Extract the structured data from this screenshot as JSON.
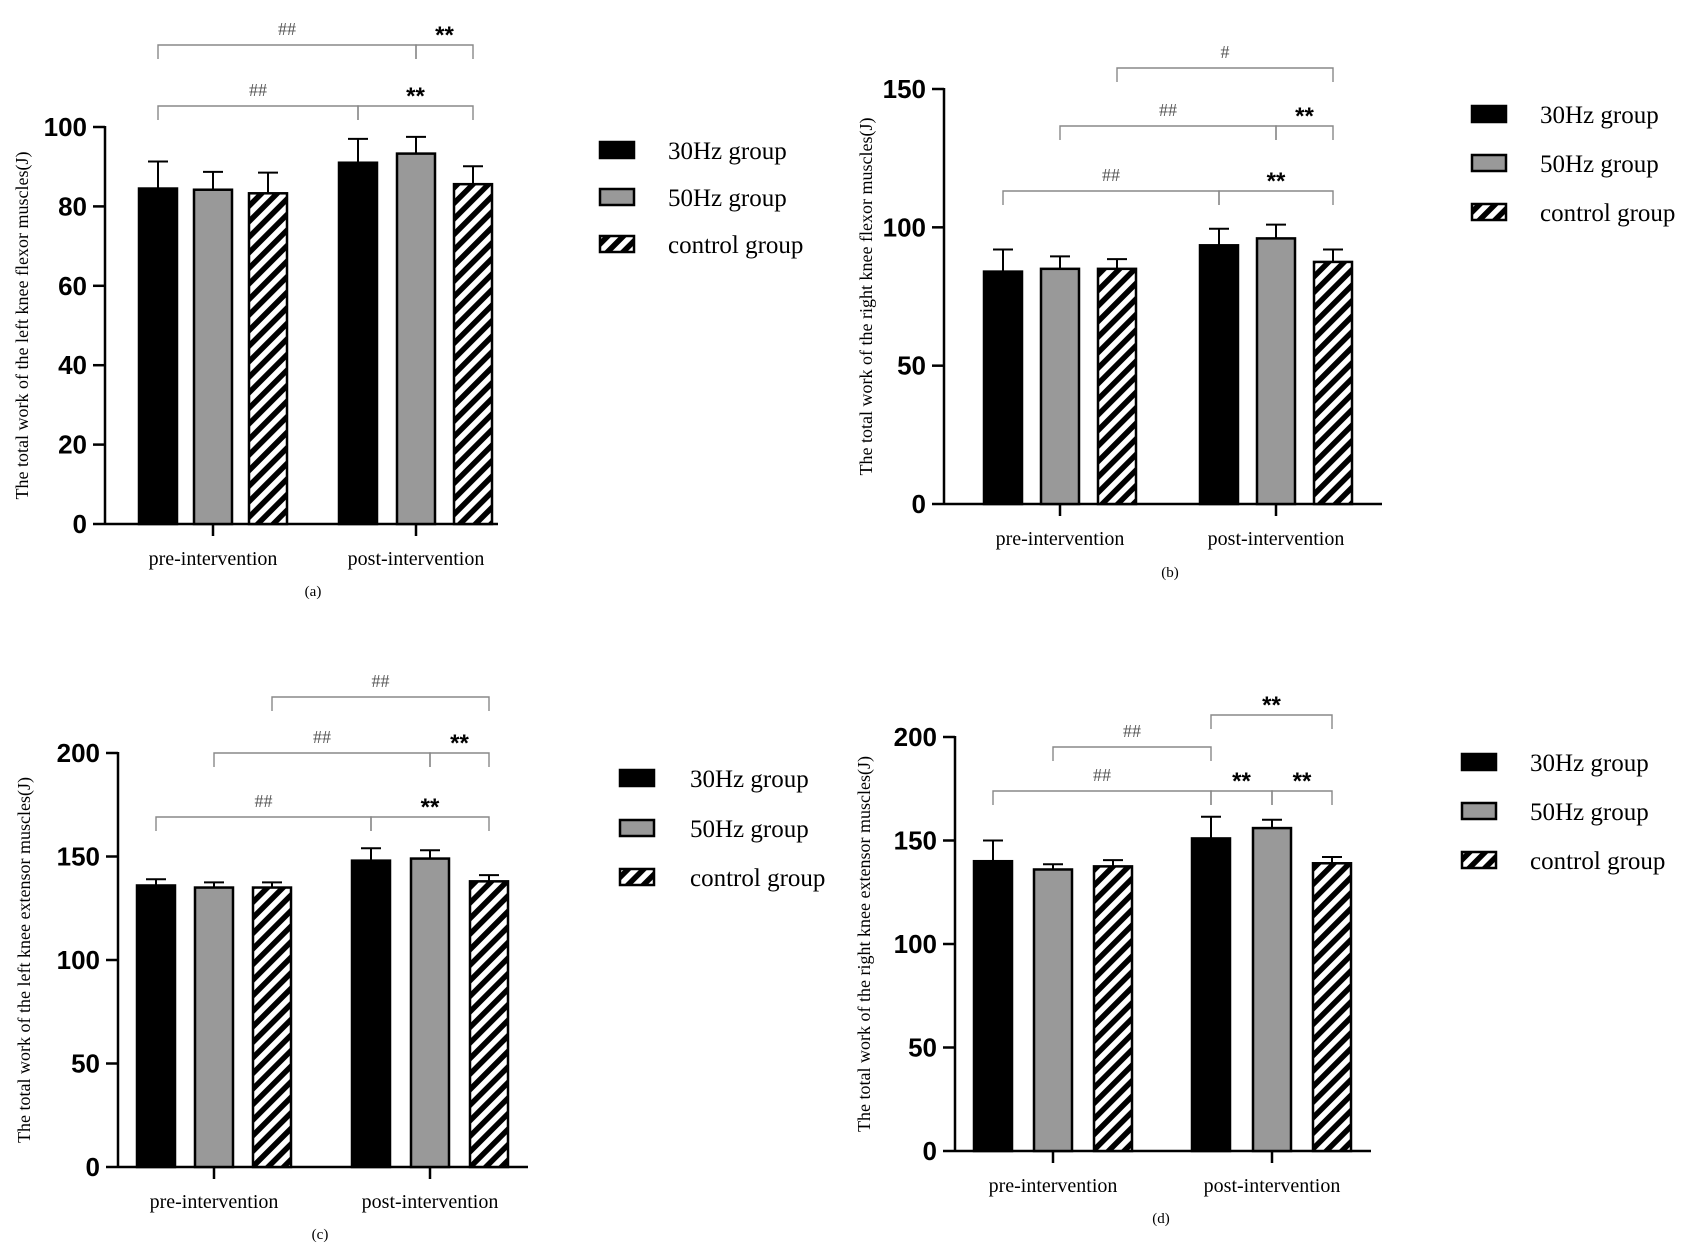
{
  "colors": {
    "group_30hz": "#000000",
    "group_50hz": "#999999",
    "control": "#ffffff",
    "bracket": "#888888"
  },
  "chart_data": [
    {
      "type": "bar",
      "panel_label": "(a)",
      "ylabel": "The total work of the left knee flexor muscles(J)",
      "categories": [
        "pre-intervention",
        "post-intervention"
      ],
      "ylim": [
        0,
        100
      ],
      "yticks": [
        0,
        20,
        40,
        60,
        80,
        100
      ],
      "series": [
        {
          "name": "30Hz group",
          "values": [
            84.5,
            91.0
          ],
          "errors": [
            6.8,
            6.0
          ]
        },
        {
          "name": "50Hz group",
          "values": [
            84.2,
            93.3
          ],
          "errors": [
            4.5,
            4.2
          ]
        },
        {
          "name": "control group",
          "values": [
            83.3,
            85.6
          ],
          "errors": [
            5.2,
            4.5
          ]
        }
      ],
      "legend": [
        "30Hz group",
        "50Hz group",
        "control group"
      ],
      "annotations": [
        {
          "text": "##",
          "from": [
            0,
            0
          ],
          "to": [
            1,
            1
          ],
          "level": 2,
          "style": "hash"
        },
        {
          "text": "**",
          "from": [
            1,
            1
          ],
          "to": [
            1,
            2
          ],
          "level": 2,
          "style": "star"
        },
        {
          "text": "##",
          "from": [
            0,
            0
          ],
          "to": [
            1,
            0
          ],
          "level": 1,
          "style": "hash"
        },
        {
          "text": "**",
          "from": [
            1,
            0
          ],
          "to": [
            1,
            2
          ],
          "level": 1,
          "style": "star"
        }
      ]
    },
    {
      "type": "bar",
      "panel_label": "(b)",
      "ylabel": "The total work of the right knee flexor muscles(J)",
      "categories": [
        "pre-intervention",
        "post-intervention"
      ],
      "ylim": [
        0,
        150
      ],
      "yticks": [
        0,
        50,
        100,
        150
      ],
      "series": [
        {
          "name": "30Hz group",
          "values": [
            84.0,
            93.5
          ],
          "errors": [
            8.0,
            6.0
          ]
        },
        {
          "name": "50Hz group",
          "values": [
            85.0,
            96.0
          ],
          "errors": [
            4.5,
            5.0
          ]
        },
        {
          "name": "control group",
          "values": [
            85.0,
            87.5
          ],
          "errors": [
            3.5,
            4.5
          ]
        }
      ],
      "legend": [
        "30Hz group",
        "50Hz group",
        "control group"
      ],
      "annotations": [
        {
          "text": "#",
          "from": [
            0,
            2
          ],
          "to": [
            1,
            2
          ],
          "level": 3,
          "style": "hash"
        },
        {
          "text": "##",
          "from": [
            0,
            1
          ],
          "to": [
            1,
            1
          ],
          "level": 2,
          "style": "hash"
        },
        {
          "text": "**",
          "from": [
            1,
            1
          ],
          "to": [
            1,
            2
          ],
          "level": 2,
          "style": "star"
        },
        {
          "text": "##",
          "from": [
            0,
            0
          ],
          "to": [
            1,
            0
          ],
          "level": 1,
          "style": "hash"
        },
        {
          "text": "**",
          "from": [
            1,
            0
          ],
          "to": [
            1,
            2
          ],
          "level": 1,
          "style": "star"
        }
      ]
    },
    {
      "type": "bar",
      "panel_label": "(c)",
      "ylabel": "The total work of the left knee extensor muscles(J)",
      "categories": [
        "pre-intervention",
        "post-intervention"
      ],
      "ylim": [
        0,
        200
      ],
      "yticks": [
        0,
        50,
        100,
        150,
        200
      ],
      "series": [
        {
          "name": "30Hz group",
          "values": [
            136.0,
            148.0
          ],
          "errors": [
            3.0,
            6.0
          ]
        },
        {
          "name": "50Hz group",
          "values": [
            135.0,
            149.0
          ],
          "errors": [
            2.5,
            4.0
          ]
        },
        {
          "name": "control group",
          "values": [
            135.0,
            138.0
          ],
          "errors": [
            2.5,
            3.0
          ]
        }
      ],
      "legend": [
        "30Hz group",
        "50Hz group",
        "control group"
      ],
      "annotations": [
        {
          "text": "##",
          "from": [
            0,
            2
          ],
          "to": [
            1,
            2
          ],
          "level": 3,
          "style": "hash"
        },
        {
          "text": "##",
          "from": [
            0,
            1
          ],
          "to": [
            1,
            1
          ],
          "level": 2,
          "style": "hash"
        },
        {
          "text": "**",
          "from": [
            1,
            1
          ],
          "to": [
            1,
            2
          ],
          "level": 2,
          "style": "star"
        },
        {
          "text": "##",
          "from": [
            0,
            0
          ],
          "to": [
            1,
            0
          ],
          "level": 1,
          "style": "hash"
        },
        {
          "text": "**",
          "from": [
            1,
            0
          ],
          "to": [
            1,
            2
          ],
          "level": 1,
          "style": "star"
        }
      ]
    },
    {
      "type": "bar",
      "panel_label": "(d)",
      "ylabel": "The total work of the right knee extensor muscles(J)",
      "categories": [
        "pre-intervention",
        "post-intervention"
      ],
      "ylim": [
        0,
        200
      ],
      "yticks": [
        0,
        50,
        100,
        150,
        200
      ],
      "series": [
        {
          "name": "30Hz group",
          "values": [
            140.0,
            151.0
          ],
          "errors": [
            10.0,
            10.5
          ]
        },
        {
          "name": "50Hz group",
          "values": [
            136.0,
            156.0
          ],
          "errors": [
            2.5,
            4.0
          ]
        },
        {
          "name": "control group",
          "values": [
            137.5,
            139.0
          ],
          "errors": [
            3.0,
            3.0
          ]
        }
      ],
      "legend": [
        "30Hz group",
        "50Hz group",
        "control group"
      ],
      "annotations": [
        {
          "text": "**",
          "from": [
            1,
            0
          ],
          "to": [
            1,
            2
          ],
          "level": 3,
          "style": "star"
        },
        {
          "text": "##",
          "from": [
            0,
            1
          ],
          "to": [
            1,
            0
          ],
          "level": 2,
          "style": "hash"
        },
        {
          "text": "##",
          "from": [
            0,
            0
          ],
          "to": [
            1,
            0
          ],
          "level": 1,
          "style": "hash"
        },
        {
          "text": "**",
          "from": [
            1,
            0
          ],
          "to": [
            1,
            1
          ],
          "level": 1,
          "style": "star"
        },
        {
          "text": "**",
          "from": [
            1,
            1
          ],
          "to": [
            1,
            2
          ],
          "level": 1,
          "style": "star"
        }
      ]
    }
  ]
}
